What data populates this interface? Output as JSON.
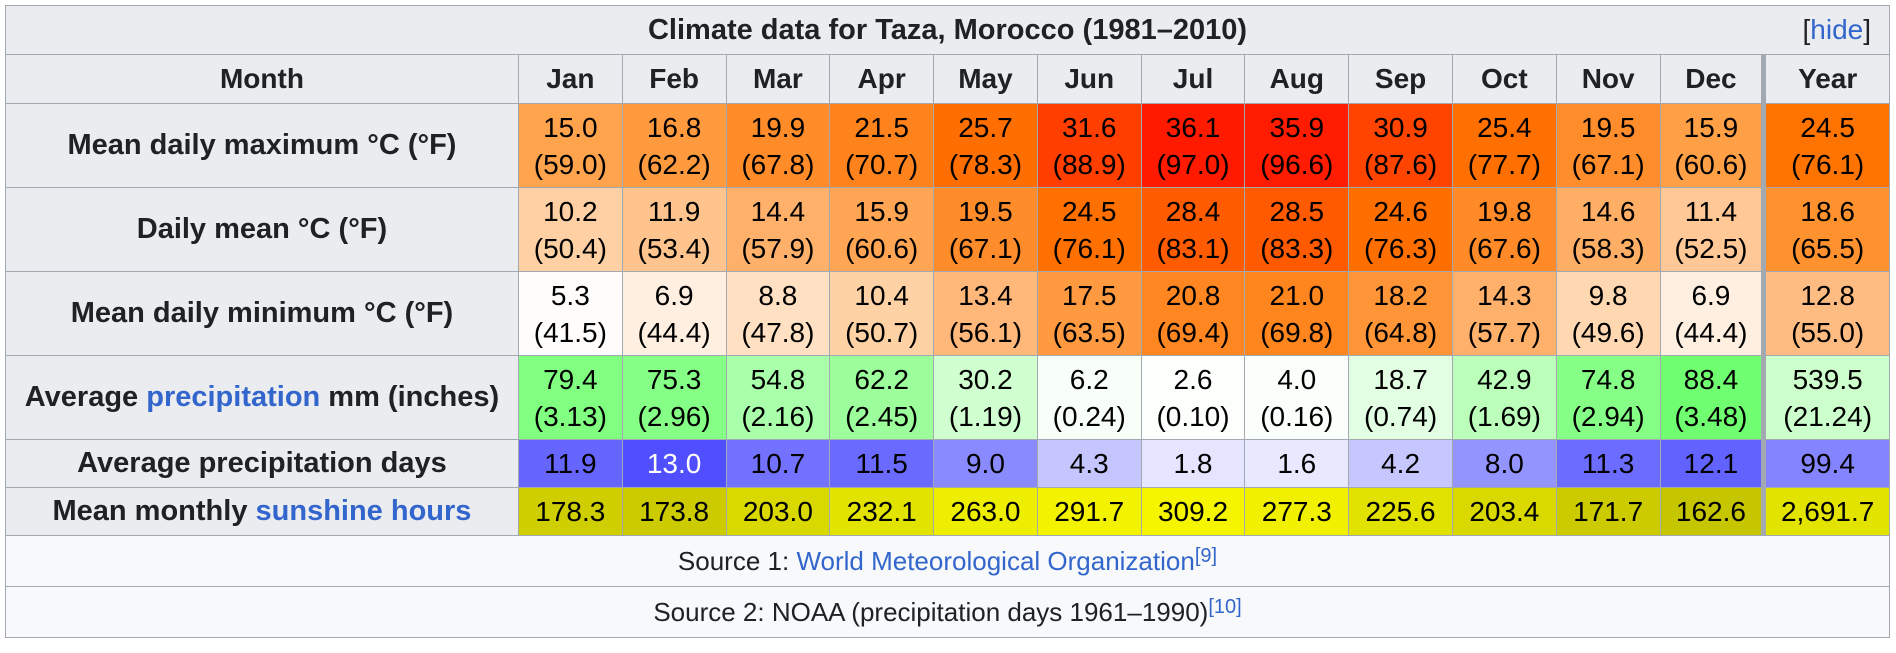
{
  "title": "Climate data for Taza, Morocco (1981–2010)",
  "toggle": {
    "open": "[",
    "label": "hide",
    "close": "]"
  },
  "header": {
    "row_label": "Month",
    "months": [
      "Jan",
      "Feb",
      "Mar",
      "Apr",
      "May",
      "Jun",
      "Jul",
      "Aug",
      "Sep",
      "Oct",
      "Nov",
      "Dec",
      "Year"
    ]
  },
  "rows": [
    {
      "label": "Mean daily maximum °C (°F)",
      "cells": [
        {
          "v": "15.0",
          "f": "(59.0)",
          "bg": "#ffa34d",
          "fg": "#000000"
        },
        {
          "v": "16.8",
          "f": "(62.2)",
          "bg": "#ff9a3f",
          "fg": "#000000"
        },
        {
          "v": "19.9",
          "f": "(67.8)",
          "bg": "#ff8b29",
          "fg": "#000000"
        },
        {
          "v": "21.5",
          "f": "(70.7)",
          "bg": "#ff831c",
          "fg": "#000000"
        },
        {
          "v": "25.7",
          "f": "(78.3)",
          "bg": "#ff6e00",
          "fg": "#000000"
        },
        {
          "v": "31.6",
          "f": "(88.9)",
          "bg": "#ff3e00",
          "fg": "#000000"
        },
        {
          "v": "36.1",
          "f": "(97.0)",
          "bg": "#ff1a00",
          "fg": "#000000"
        },
        {
          "v": "35.9",
          "f": "(96.6)",
          "bg": "#ff1c00",
          "fg": "#000000"
        },
        {
          "v": "30.9",
          "f": "(87.6)",
          "bg": "#ff4400",
          "fg": "#000000"
        },
        {
          "v": "25.4",
          "f": "(77.7)",
          "bg": "#ff7000",
          "fg": "#000000"
        },
        {
          "v": "19.5",
          "f": "(67.1)",
          "bg": "#ff8d2c",
          "fg": "#000000"
        },
        {
          "v": "15.9",
          "f": "(60.6)",
          "bg": "#ff9f46",
          "fg": "#000000"
        },
        {
          "v": "24.5",
          "f": "(76.1)",
          "bg": "#ff7400",
          "fg": "#000000"
        }
      ]
    },
    {
      "label": "Daily mean °C (°F)",
      "cells": [
        {
          "v": "10.2",
          "f": "(50.4)",
          "bg": "#ffd0a4",
          "fg": "#000000"
        },
        {
          "v": "11.9",
          "f": "(53.4)",
          "bg": "#ffc48d",
          "fg": "#000000"
        },
        {
          "v": "14.4",
          "f": "(57.9)",
          "bg": "#ffb06a",
          "fg": "#000000"
        },
        {
          "v": "15.9",
          "f": "(60.6)",
          "bg": "#ffa553",
          "fg": "#000000"
        },
        {
          "v": "19.5",
          "f": "(67.1)",
          "bg": "#ff8c2b",
          "fg": "#000000"
        },
        {
          "v": "24.5",
          "f": "(76.1)",
          "bg": "#ff7000",
          "fg": "#000000"
        },
        {
          "v": "28.4",
          "f": "(83.1)",
          "bg": "#ff5b00",
          "fg": "#000000"
        },
        {
          "v": "28.5",
          "f": "(83.3)",
          "bg": "#ff5a00",
          "fg": "#000000"
        },
        {
          "v": "24.6",
          "f": "(76.3)",
          "bg": "#ff6f00",
          "fg": "#000000"
        },
        {
          "v": "19.8",
          "f": "(67.6)",
          "bg": "#ff8a27",
          "fg": "#000000"
        },
        {
          "v": "14.6",
          "f": "(58.3)",
          "bg": "#ffae66",
          "fg": "#000000"
        },
        {
          "v": "11.4",
          "f": "(52.5)",
          "bg": "#ffc896",
          "fg": "#000000"
        },
        {
          "v": "18.6",
          "f": "(65.5)",
          "bg": "#ff912f",
          "fg": "#000000"
        }
      ]
    },
    {
      "label": "Mean daily minimum °C (°F)",
      "cells": [
        {
          "v": "5.3",
          "f": "(41.5)",
          "bg": "#fffdfb",
          "fg": "#000000"
        },
        {
          "v": "6.9",
          "f": "(44.4)",
          "bg": "#ffefe0",
          "fg": "#000000"
        },
        {
          "v": "8.8",
          "f": "(47.8)",
          "bg": "#ffe0c2",
          "fg": "#000000"
        },
        {
          "v": "10.4",
          "f": "(50.7)",
          "bg": "#ffd2a6",
          "fg": "#000000"
        },
        {
          "v": "13.4",
          "f": "(56.1)",
          "bg": "#ffb87a",
          "fg": "#000000"
        },
        {
          "v": "17.5",
          "f": "(63.5)",
          "bg": "#ff9a40",
          "fg": "#000000"
        },
        {
          "v": "20.8",
          "f": "(69.4)",
          "bg": "#ff8620",
          "fg": "#000000"
        },
        {
          "v": "21.0",
          "f": "(69.8)",
          "bg": "#ff851e",
          "fg": "#000000"
        },
        {
          "v": "18.2",
          "f": "(64.8)",
          "bg": "#ff9537",
          "fg": "#000000"
        },
        {
          "v": "14.3",
          "f": "(57.7)",
          "bg": "#ffb16c",
          "fg": "#000000"
        },
        {
          "v": "9.8",
          "f": "(49.6)",
          "bg": "#ffd8b2",
          "fg": "#000000"
        },
        {
          "v": "6.9",
          "f": "(44.4)",
          "bg": "#ffefe0",
          "fg": "#000000"
        },
        {
          "v": "12.8",
          "f": "(55.0)",
          "bg": "#ffbc82",
          "fg": "#000000"
        }
      ]
    },
    {
      "label_pre": "Average ",
      "label_link": "precipitation",
      "label_post": " mm (inches)",
      "cells": [
        {
          "v": "79.4",
          "f": "(3.13)",
          "bg": "#80ff80",
          "fg": "#000000"
        },
        {
          "v": "75.3",
          "f": "(2.96)",
          "bg": "#85ff85",
          "fg": "#000000"
        },
        {
          "v": "54.8",
          "f": "(2.16)",
          "bg": "#aaffaa",
          "fg": "#000000"
        },
        {
          "v": "62.2",
          "f": "(2.45)",
          "bg": "#9cff9c",
          "fg": "#000000"
        },
        {
          "v": "30.2",
          "f": "(1.19)",
          "bg": "#d0ffd0",
          "fg": "#000000"
        },
        {
          "v": "6.2",
          "f": "(0.24)",
          "bg": "#f8fff8",
          "fg": "#000000"
        },
        {
          "v": "2.6",
          "f": "(0.10)",
          "bg": "#fdfffd",
          "fg": "#000000"
        },
        {
          "v": "4.0",
          "f": "(0.16)",
          "bg": "#fbfffb",
          "fg": "#000000"
        },
        {
          "v": "18.7",
          "f": "(0.74)",
          "bg": "#e3ffe3",
          "fg": "#000000"
        },
        {
          "v": "42.9",
          "f": "(1.69)",
          "bg": "#bbffbb",
          "fg": "#000000"
        },
        {
          "v": "74.8",
          "f": "(2.94)",
          "bg": "#86ff86",
          "fg": "#000000"
        },
        {
          "v": "88.4",
          "f": "(3.48)",
          "bg": "#70ff70",
          "fg": "#000000"
        },
        {
          "v": "539.5",
          "f": "(21.24)",
          "bg": "#ccffcc",
          "fg": "#000000"
        }
      ]
    },
    {
      "label": "Average precipitation days",
      "cells": [
        {
          "v": "11.9",
          "bg": "#6666ff",
          "fg": "#000000"
        },
        {
          "v": "13.0",
          "bg": "#4f4fff",
          "fg": "#ffffff"
        },
        {
          "v": "10.7",
          "bg": "#7272ff",
          "fg": "#000000"
        },
        {
          "v": "11.5",
          "bg": "#6a6aff",
          "fg": "#000000"
        },
        {
          "v": "9.0",
          "bg": "#8a8aff",
          "fg": "#000000"
        },
        {
          "v": "4.3",
          "bg": "#c6c6ff",
          "fg": "#000000"
        },
        {
          "v": "1.8",
          "bg": "#e5e5ff",
          "fg": "#000000"
        },
        {
          "v": "1.6",
          "bg": "#e8e8ff",
          "fg": "#000000"
        },
        {
          "v": "4.2",
          "bg": "#c7c7ff",
          "fg": "#000000"
        },
        {
          "v": "8.0",
          "bg": "#9494ff",
          "fg": "#000000"
        },
        {
          "v": "11.3",
          "bg": "#6c6cff",
          "fg": "#000000"
        },
        {
          "v": "12.1",
          "bg": "#6262ff",
          "fg": "#000000"
        },
        {
          "v": "99.4",
          "bg": "#8484ff",
          "fg": "#000000"
        }
      ]
    },
    {
      "label_pre": "Mean monthly ",
      "label_link": "sunshine hours",
      "label_post": "",
      "cells": [
        {
          "v": "178.3",
          "bg": "#cece00",
          "fg": "#000000"
        },
        {
          "v": "173.8",
          "bg": "#cbcb00",
          "fg": "#000000"
        },
        {
          "v": "203.0",
          "bg": "#d9d900",
          "fg": "#000000"
        },
        {
          "v": "232.1",
          "bg": "#e3e300",
          "fg": "#000000"
        },
        {
          "v": "263.0",
          "bg": "#eeee00",
          "fg": "#000000"
        },
        {
          "v": "291.7",
          "bg": "#f3f300",
          "fg": "#000000"
        },
        {
          "v": "309.2",
          "bg": "#f5f500",
          "fg": "#000000"
        },
        {
          "v": "277.3",
          "bg": "#f0f000",
          "fg": "#000000"
        },
        {
          "v": "225.6",
          "bg": "#e2e200",
          "fg": "#000000"
        },
        {
          "v": "203.4",
          "bg": "#d9d900",
          "fg": "#000000"
        },
        {
          "v": "171.7",
          "bg": "#cbcb00",
          "fg": "#000000"
        },
        {
          "v": "162.6",
          "bg": "#c5c500",
          "fg": "#000000"
        },
        {
          "v": "2,691.7",
          "bg": "#e3e300",
          "fg": "#000000"
        }
      ]
    }
  ],
  "sources": [
    {
      "pre": "Source 1: ",
      "link": "World Meteorological Organization",
      "post": "",
      "ref": "[9]"
    },
    {
      "pre": "Source 2: NOAA (precipitation days 1961–1990)",
      "link": "",
      "post": "",
      "ref": "[10]"
    }
  ]
}
